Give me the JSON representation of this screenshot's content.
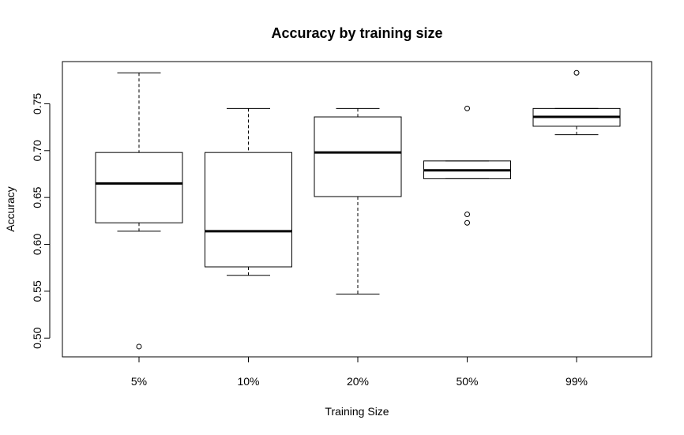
{
  "chart_data": {
    "type": "boxplot",
    "title": "Accuracy by training size",
    "xlabel": "Training Size",
    "ylabel": "Accuracy",
    "ylim": [
      0.48,
      0.795
    ],
    "yticks": [
      0.5,
      0.55,
      0.6,
      0.65,
      0.7,
      0.75
    ],
    "ytick_labels": [
      "0.50",
      "0.55",
      "0.60",
      "0.65",
      "0.70",
      "0.75"
    ],
    "categories": [
      "5%",
      "10%",
      "20%",
      "50%",
      "99%"
    ],
    "boxes": [
      {
        "category": "5%",
        "whisker_low": 0.614,
        "q1": 0.623,
        "median": 0.665,
        "q3": 0.698,
        "whisker_high": 0.783,
        "outliers": [
          0.491
        ]
      },
      {
        "category": "10%",
        "whisker_low": 0.567,
        "q1": 0.576,
        "median": 0.614,
        "q3": 0.698,
        "whisker_high": 0.745,
        "outliers": []
      },
      {
        "category": "20%",
        "whisker_low": 0.547,
        "q1": 0.651,
        "median": 0.698,
        "q3": 0.736,
        "whisker_high": 0.745,
        "outliers": []
      },
      {
        "category": "50%",
        "whisker_low": 0.67,
        "q1": 0.67,
        "median": 0.679,
        "q3": 0.689,
        "whisker_high": 0.689,
        "outliers": [
          0.745,
          0.632,
          0.623
        ]
      },
      {
        "category": "99%",
        "whisker_low": 0.717,
        "q1": 0.726,
        "median": 0.736,
        "q3": 0.745,
        "whisker_high": 0.745,
        "outliers": [
          0.783
        ]
      }
    ],
    "grid": false,
    "legend": "none"
  }
}
